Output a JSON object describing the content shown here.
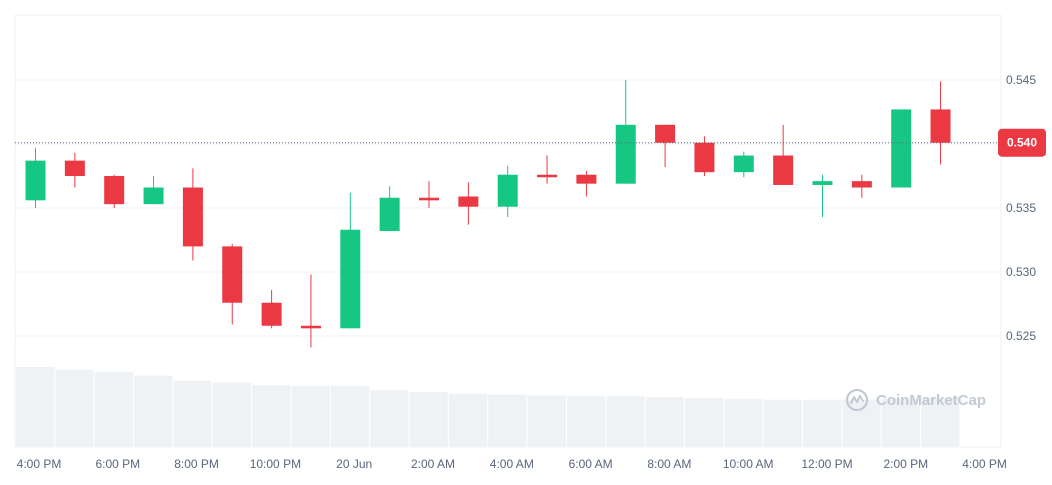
{
  "watermark": "CoinMarketCap",
  "colors": {
    "up": "#16c784",
    "down": "#ea3943",
    "volume": "#eff2f5",
    "grid": "#eff2f5",
    "axis_text": "#58667e",
    "last_price_badge": "#ea3943"
  },
  "chart_data": {
    "type": "candlestick",
    "title": "",
    "xlabel": "",
    "ylabel": "",
    "ylim": [
      0.5195,
      0.5495
    ],
    "y_ticks": [
      "0.545",
      "0.540",
      "0.535",
      "0.530",
      "0.525"
    ],
    "x_ticks": [
      "4:00 PM",
      "6:00 PM",
      "8:00 PM",
      "10:00 PM",
      "20 Jun",
      "2:00 AM",
      "4:00 AM",
      "6:00 AM",
      "8:00 AM",
      "10:00 AM",
      "12:00 PM",
      "2:00 PM",
      "4:00 PM"
    ],
    "last_price_label": "0.540",
    "last_price": 0.5401,
    "grid": true,
    "candles": [
      {
        "o": 0.5356,
        "h": 0.5397,
        "l": 0.535,
        "c": 0.5387
      },
      {
        "o": 0.5387,
        "h": 0.5393,
        "l": 0.5366,
        "c": 0.5375
      },
      {
        "o": 0.5375,
        "h": 0.5376,
        "l": 0.535,
        "c": 0.5353
      },
      {
        "o": 0.5353,
        "h": 0.5375,
        "l": 0.5353,
        "c": 0.5366
      },
      {
        "o": 0.5366,
        "h": 0.5381,
        "l": 0.5309,
        "c": 0.532
      },
      {
        "o": 0.532,
        "h": 0.5322,
        "l": 0.5259,
        "c": 0.5276
      },
      {
        "o": 0.5276,
        "h": 0.5286,
        "l": 0.5256,
        "c": 0.5258
      },
      {
        "o": 0.5258,
        "h": 0.5298,
        "l": 0.5241,
        "c": 0.5256
      },
      {
        "o": 0.5256,
        "h": 0.5362,
        "l": 0.5256,
        "c": 0.5333
      },
      {
        "o": 0.5332,
        "h": 0.5367,
        "l": 0.5332,
        "c": 0.5358
      },
      {
        "o": 0.5358,
        "h": 0.5371,
        "l": 0.535,
        "c": 0.5356
      },
      {
        "o": 0.5359,
        "h": 0.537,
        "l": 0.5337,
        "c": 0.5351
      },
      {
        "o": 0.5351,
        "h": 0.5383,
        "l": 0.5343,
        "c": 0.5376
      },
      {
        "o": 0.5376,
        "h": 0.5391,
        "l": 0.5369,
        "c": 0.5374
      },
      {
        "o": 0.5376,
        "h": 0.5379,
        "l": 0.5359,
        "c": 0.5369
      },
      {
        "o": 0.5369,
        "h": 0.545,
        "l": 0.5369,
        "c": 0.5415
      },
      {
        "o": 0.5415,
        "h": 0.5415,
        "l": 0.5382,
        "c": 0.5401
      },
      {
        "o": 0.5401,
        "h": 0.5406,
        "l": 0.5375,
        "c": 0.5378
      },
      {
        "o": 0.5378,
        "h": 0.5394,
        "l": 0.5374,
        "c": 0.5391
      },
      {
        "o": 0.5391,
        "h": 0.5415,
        "l": 0.5368,
        "c": 0.5368
      },
      {
        "o": 0.5368,
        "h": 0.5376,
        "l": 0.5343,
        "c": 0.5371
      },
      {
        "o": 0.5371,
        "h": 0.5376,
        "l": 0.5358,
        "c": 0.5366
      },
      {
        "o": 0.5366,
        "h": 0.5427,
        "l": 0.5366,
        "c": 0.5427
      },
      {
        "o": 0.5427,
        "h": 0.5449,
        "l": 0.5384,
        "c": 0.5401
      }
    ],
    "volume": [
      0.93,
      0.9,
      0.87,
      0.83,
      0.77,
      0.75,
      0.72,
      0.71,
      0.71,
      0.66,
      0.64,
      0.62,
      0.61,
      0.6,
      0.59,
      0.59,
      0.58,
      0.57,
      0.56,
      0.55,
      0.55,
      0.55,
      0.56,
      0.57
    ]
  }
}
